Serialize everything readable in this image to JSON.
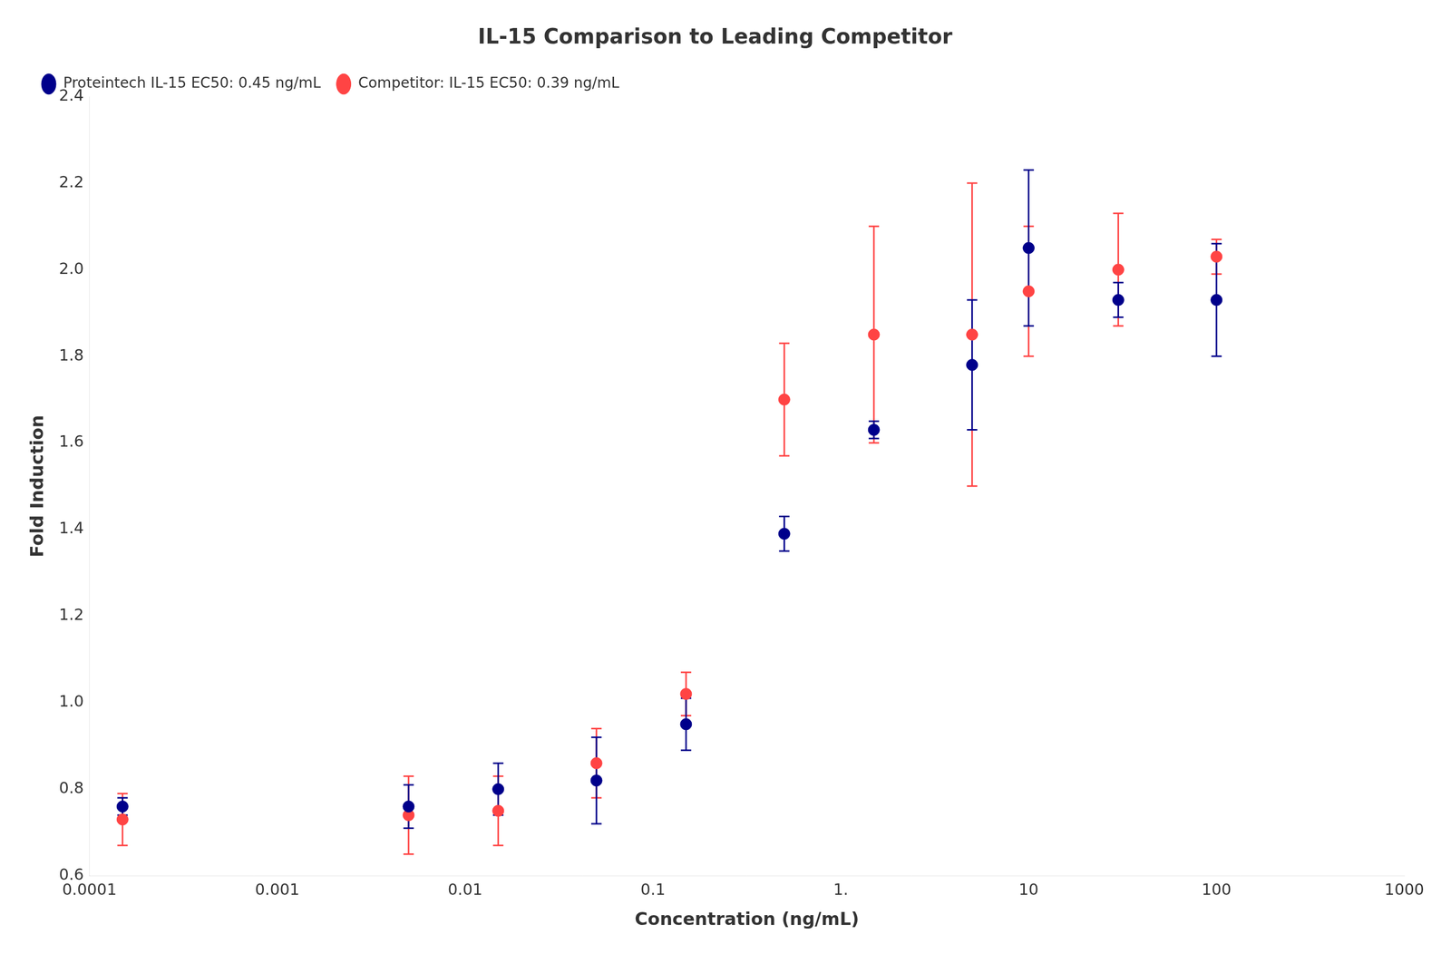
{
  "chart_data": {
    "type": "scatter",
    "title": "IL-15 Comparison to Leading Competitor",
    "x_label": "Concentration (ng/mL)",
    "y_label": "Fold Induction",
    "log": "x",
    "xlim": [
      0.0001,
      1000
    ],
    "xticks": [
      0.0001,
      0.001,
      0.01,
      0.1,
      {
        "value": 1,
        "label": "1."
      },
      10,
      100,
      1000
    ],
    "ylim": [
      0.6,
      2.4
    ],
    "yticks": [
      0.6,
      0.8,
      {
        "value": 1.0,
        "label": "1.0"
      },
      1.2,
      1.4,
      1.6,
      1.8,
      {
        "value": 2.0,
        "label": "2.0"
      },
      2.2,
      2.4
    ],
    "grid": false,
    "legend": "upper left",
    "marker": "circle",
    "series": [
      {
        "name": "Proteintech IL-15 EC50: 0.45 ng/mL",
        "color": "#00008B",
        "x": [
          0.00015,
          0.005,
          0.015,
          0.05,
          0.15,
          0.5,
          1.5,
          5,
          10,
          30,
          100
        ],
        "values": [
          0.76,
          0.76,
          0.8,
          0.82,
          0.95,
          1.39,
          1.63,
          1.78,
          2.05,
          1.93,
          1.93
        ],
        "yerr": [
          0.02,
          0.05,
          0.06,
          0.1,
          0.06,
          0.04,
          0.02,
          0.15,
          0.18,
          0.04,
          0.13
        ]
      },
      {
        "name": "Competitor: IL-15 EC50: 0.39 ng/mL",
        "color": "#FF4444",
        "x": [
          0.00015,
          0.005,
          0.015,
          0.05,
          0.15,
          0.5,
          1.5,
          5,
          10,
          30,
          100
        ],
        "values": [
          0.73,
          0.74,
          0.75,
          0.86,
          1.02,
          1.7,
          1.85,
          1.85,
          1.95,
          2.0,
          2.03
        ],
        "yerr": [
          0.06,
          0.09,
          0.08,
          0.08,
          0.05,
          0.13,
          0.25,
          0.35,
          0.15,
          0.13,
          0.04
        ]
      }
    ]
  }
}
